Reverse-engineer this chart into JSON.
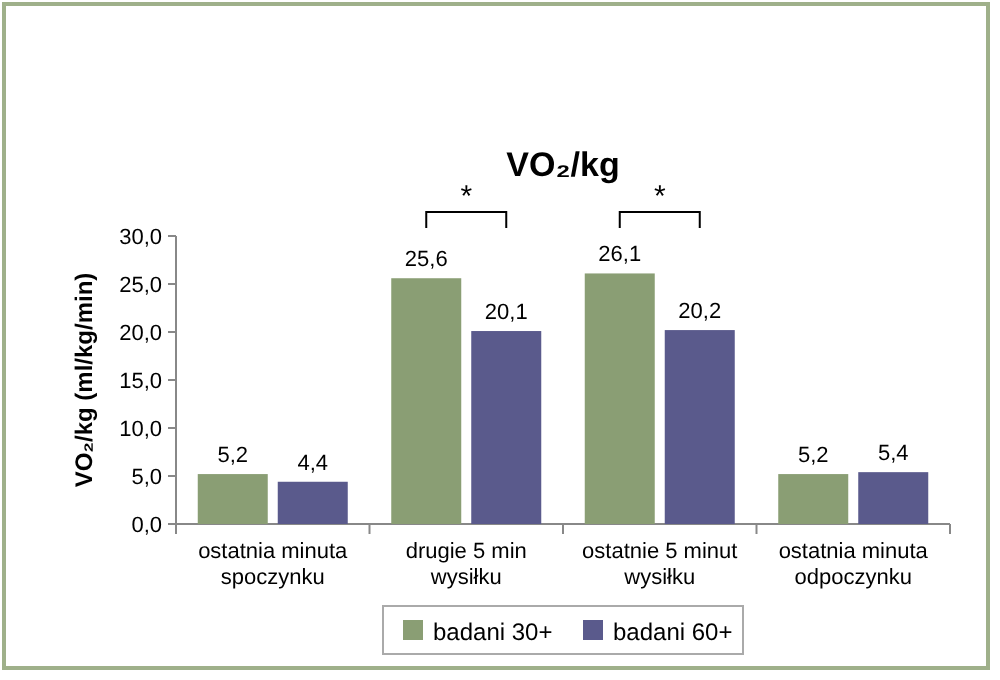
{
  "chart_data": {
    "type": "bar",
    "title": "VO₂/kg",
    "ylabel": "VO₂/kg (ml/kg/min)",
    "categories": [
      "ostatnia minuta spoczynku",
      "drugie 5 min wysiłku",
      "ostatnie 5 minut wysiłku",
      "ostatnia minuta odpoczynku"
    ],
    "series": [
      {
        "name": "badani 30+",
        "color": "#8a9e74",
        "values": [
          5.2,
          25.6,
          26.1,
          5.2
        ],
        "value_labels": [
          "5,2",
          "25,6",
          "26,1",
          "5,2"
        ]
      },
      {
        "name": "badani 60+",
        "color": "#5a5a8c",
        "values": [
          4.4,
          20.1,
          20.2,
          5.4
        ],
        "value_labels": [
          "4,4",
          "20,1",
          "20,2",
          "5,4"
        ]
      }
    ],
    "ylim": [
      0,
      30
    ],
    "yticks": [
      {
        "value": 0,
        "label": "0,0"
      },
      {
        "value": 5,
        "label": "5,0"
      },
      {
        "value": 10,
        "label": "10,0"
      },
      {
        "value": 15,
        "label": "15,0"
      },
      {
        "value": 20,
        "label": "20,0"
      },
      {
        "value": 25,
        "label": "25,0"
      },
      {
        "value": 30,
        "label": "30,0"
      }
    ],
    "annotations": [
      "*",
      "*"
    ],
    "legend": "bottom",
    "grid": false
  }
}
